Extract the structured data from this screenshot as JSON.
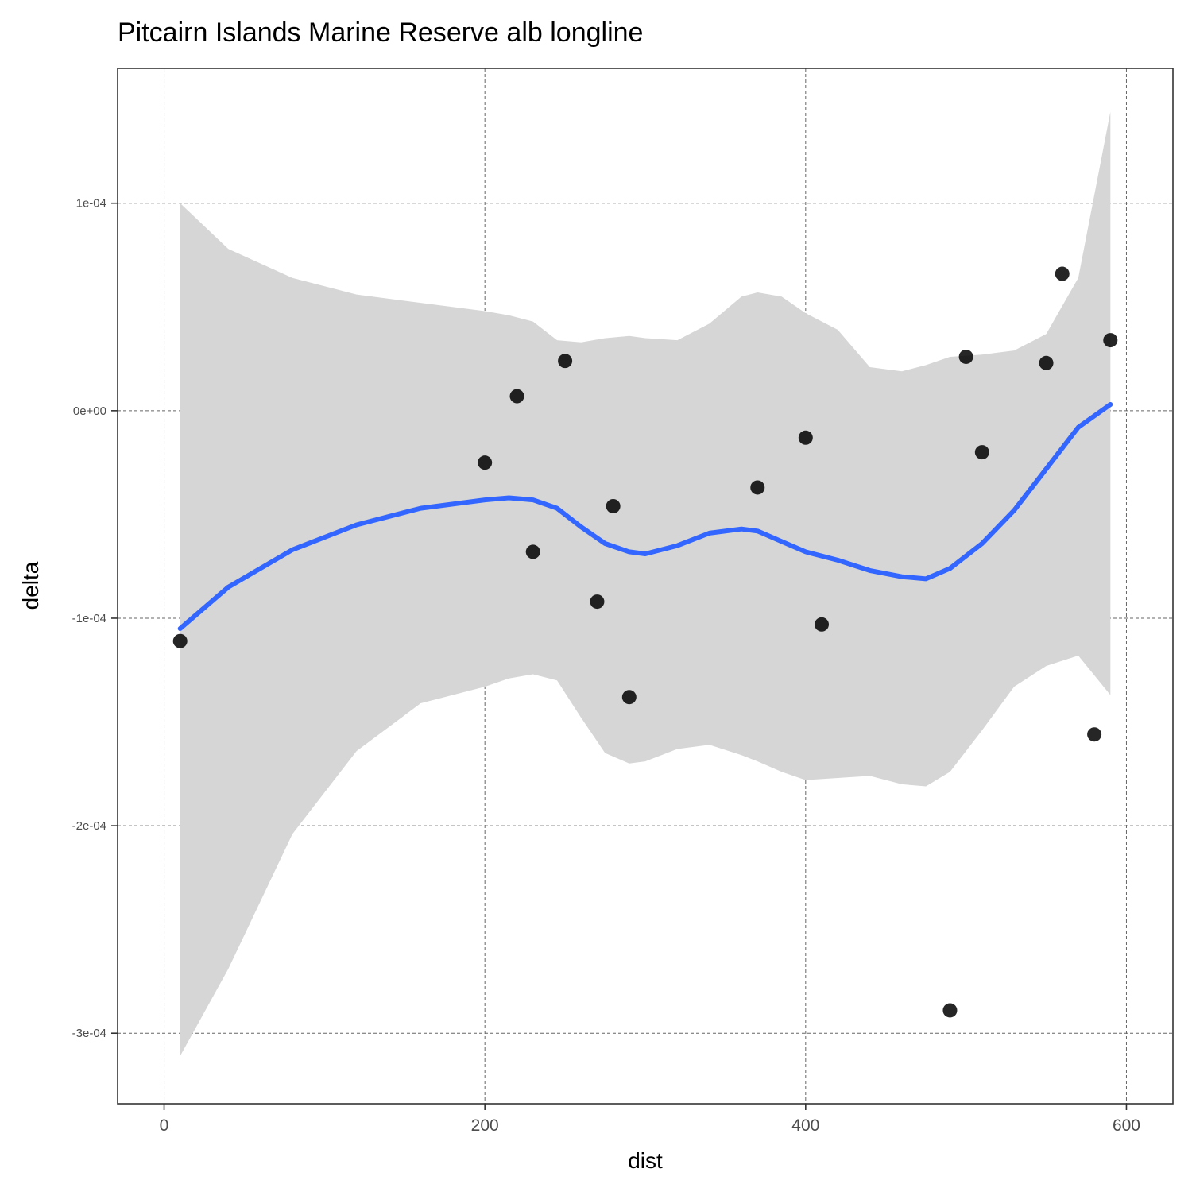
{
  "chart_data": {
    "type": "scatter",
    "title": "Pitcairn Islands Marine Reserve alb longline",
    "xlabel": "dist",
    "ylabel": "delta",
    "xlim": [
      -29,
      629
    ],
    "ylim": [
      -0.000334,
      0.000165
    ],
    "x_ticks": [
      0,
      200,
      400,
      600
    ],
    "x_tick_labels": [
      "0",
      "200",
      "400",
      "600"
    ],
    "y_ticks": [
      0.0001,
      0,
      -0.0001,
      -0.0002,
      -0.0003
    ],
    "y_tick_labels": [
      "1e-04",
      "0e+00",
      "-1e-04",
      "-2e-04",
      "-3e-04"
    ],
    "grid": true,
    "grid_style": "dashed",
    "legend": "none",
    "colors": {
      "points": "#000000",
      "smooth": "#3366ff",
      "ribbon": "#d6d6d6",
      "grid": "#666666"
    },
    "points": [
      {
        "x": 10,
        "y": -0.000111
      },
      {
        "x": 200,
        "y": -2.5e-05
      },
      {
        "x": 220,
        "y": 7e-06
      },
      {
        "x": 230,
        "y": -6.8e-05
      },
      {
        "x": 250,
        "y": 2.4e-05
      },
      {
        "x": 270,
        "y": -9.2e-05
      },
      {
        "x": 280,
        "y": -4.6e-05
      },
      {
        "x": 290,
        "y": -0.000138
      },
      {
        "x": 370,
        "y": -3.7e-05
      },
      {
        "x": 400,
        "y": -1.3e-05
      },
      {
        "x": 410,
        "y": -0.000103
      },
      {
        "x": 490,
        "y": -0.000289
      },
      {
        "x": 500,
        "y": 2.6e-05
      },
      {
        "x": 510,
        "y": -2e-05
      },
      {
        "x": 550,
        "y": 2.3e-05
      },
      {
        "x": 560,
        "y": 6.6e-05
      },
      {
        "x": 580,
        "y": -0.000156
      },
      {
        "x": 590,
        "y": 3.4e-05
      }
    ],
    "smooth": {
      "method": "loess",
      "x": [
        10,
        40,
        80,
        120,
        160,
        200,
        215,
        230,
        245,
        260,
        275,
        290,
        300,
        320,
        340,
        360,
        370,
        385,
        400,
        420,
        440,
        460,
        475,
        490,
        510,
        530,
        550,
        570,
        590
      ],
      "y": [
        -0.000105,
        -8.5e-05,
        -6.7e-05,
        -5.5e-05,
        -4.7e-05,
        -4.3e-05,
        -4.2e-05,
        -4.3e-05,
        -4.7e-05,
        -5.6e-05,
        -6.4e-05,
        -6.8e-05,
        -6.9e-05,
        -6.5e-05,
        -5.9e-05,
        -5.7e-05,
        -5.8e-05,
        -6.3e-05,
        -6.8e-05,
        -7.2e-05,
        -7.7e-05,
        -8e-05,
        -8.1e-05,
        -7.6e-05,
        -6.4e-05,
        -4.8e-05,
        -2.8e-05,
        -8e-06,
        3e-06
      ],
      "upper": [
        0.0001,
        7.8e-05,
        6.4e-05,
        5.6e-05,
        5.2e-05,
        4.8e-05,
        4.6e-05,
        4.3e-05,
        3.4e-05,
        3.3e-05,
        3.5e-05,
        3.6e-05,
        3.5e-05,
        3.4e-05,
        4.2e-05,
        5.5e-05,
        5.7e-05,
        5.5e-05,
        4.7e-05,
        3.9e-05,
        2.1e-05,
        1.9e-05,
        2.2e-05,
        2.6e-05,
        2.7e-05,
        2.9e-05,
        3.7e-05,
        6.4e-05,
        0.000144
      ],
      "lower": [
        -0.000311,
        -0.000269,
        -0.000204,
        -0.000164,
        -0.000141,
        -0.000133,
        -0.000129,
        -0.000127,
        -0.00013,
        -0.000148,
        -0.000165,
        -0.00017,
        -0.000169,
        -0.000163,
        -0.000161,
        -0.000166,
        -0.000169,
        -0.000174,
        -0.000178,
        -0.000177,
        -0.000176,
        -0.00018,
        -0.000181,
        -0.000174,
        -0.000154,
        -0.000133,
        -0.000123,
        -0.000118,
        -0.000137
      ]
    }
  }
}
